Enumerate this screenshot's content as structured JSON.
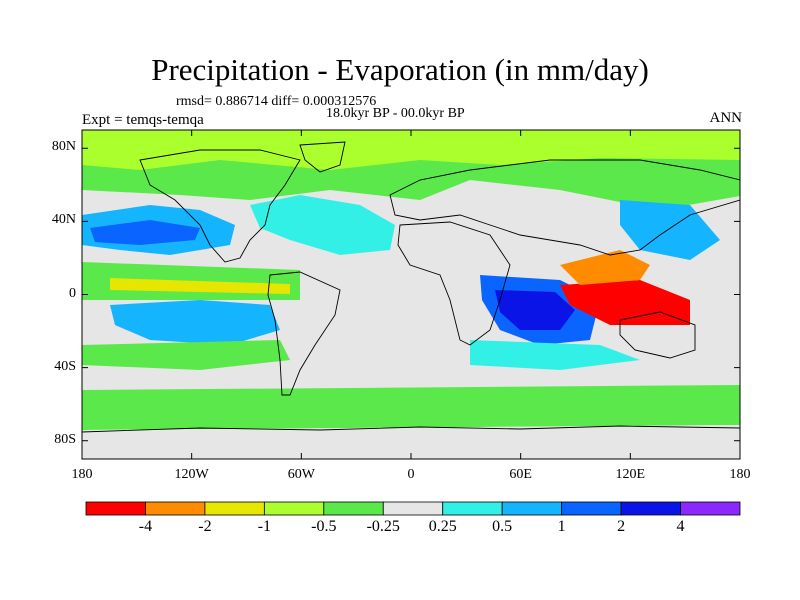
{
  "title": "Precipitation - Evaporation (in mm/day)",
  "stats_line": "rmsd= 0.886714 diff= 0.000312576",
  "period": "18.0kyr BP - 00.0kyr BP",
  "experiment": "Expt = temqs-temqa",
  "season": "ANN",
  "lat_ticks": [
    {
      "label": "80N",
      "lat": 80
    },
    {
      "label": "40N",
      "lat": 40
    },
    {
      "label": "0",
      "lat": 0
    },
    {
      "label": "40S",
      "lat": -40
    },
    {
      "label": "80S",
      "lat": -80
    }
  ],
  "lon_ticks": [
    {
      "label": "180",
      "lon": -180
    },
    {
      "label": "120W",
      "lon": -120
    },
    {
      "label": "60W",
      "lon": -60
    },
    {
      "label": "0",
      "lon": 0
    },
    {
      "label": "60E",
      "lon": 60
    },
    {
      "label": "120E",
      "lon": 120
    },
    {
      "label": "180",
      "lon": 180
    }
  ],
  "colorbar": {
    "colors": [
      "#ff0000",
      "#ff8c00",
      "#e6e600",
      "#aaff2d",
      "#5be84a",
      "#e6e6e6",
      "#33f0e6",
      "#14b4ff",
      "#0a64ff",
      "#0a14e6",
      "#8c28ff"
    ],
    "labels": [
      "-4",
      "-2",
      "-1",
      "-0.5",
      "-0.25",
      "0.25",
      "0.5",
      "1",
      "2",
      "4"
    ]
  },
  "chart_data": {
    "type": "heatmap",
    "title": "Precipitation - Evaporation (in mm/day)",
    "subtitle": "18.0kyr BP - 00.0kyr BP",
    "x_extent": [
      -180,
      180
    ],
    "y_extent": [
      -90,
      90
    ],
    "contour_levels": [
      -4,
      -2,
      -1,
      -0.5,
      -0.25,
      0.25,
      0.5,
      1,
      2,
      4
    ],
    "grid": false,
    "legend": "bottom"
  }
}
